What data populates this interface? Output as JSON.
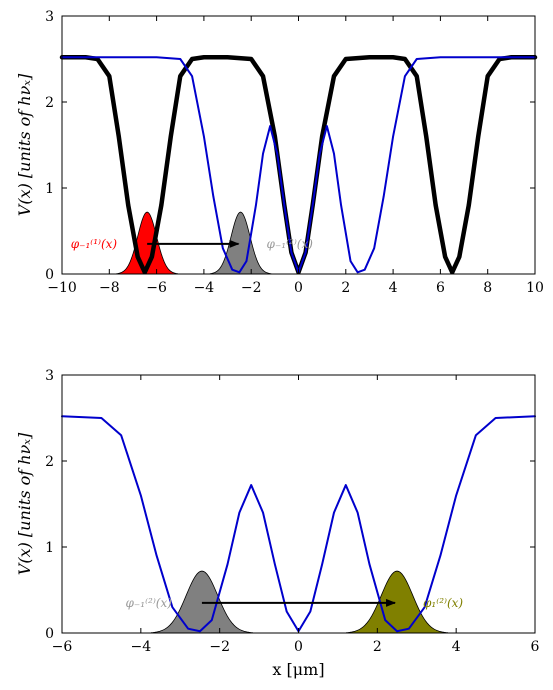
{
  "chart_data": [
    {
      "type": "line",
      "ylabel": "V(x) [units of hνₓ]",
      "xlabel": "",
      "xlim": [
        -10,
        10
      ],
      "ylim": [
        0,
        3
      ],
      "x_ticks": [
        "−10",
        "−8",
        "−6",
        "−4",
        "−2",
        "0",
        "2",
        "4",
        "6",
        "8",
        "10"
      ],
      "y_ticks": [
        "0",
        "1",
        "2",
        "3"
      ],
      "grid": false,
      "series": [
        {
          "role": "potential, three wells (thick)",
          "color": "#000000",
          "x": [
            -10,
            -9,
            -8.5,
            -8,
            -7.6,
            -7.2,
            -6.8,
            -6.5,
            -6.2,
            -5.8,
            -5.4,
            -5,
            -4.5,
            -4,
            -3,
            -2,
            -1.5,
            -1,
            -0.6,
            -0.3,
            0,
            0.3,
            0.6,
            1,
            1.5,
            2,
            3,
            4,
            4.5,
            5,
            5.4,
            5.8,
            6.2,
            6.5,
            6.8,
            7.2,
            7.6,
            8,
            8.5,
            9,
            10
          ],
          "y": [
            2.52,
            2.52,
            2.5,
            2.3,
            1.6,
            0.8,
            0.2,
            0.02,
            0.2,
            0.8,
            1.6,
            2.3,
            2.5,
            2.52,
            2.52,
            2.5,
            2.3,
            1.6,
            0.8,
            0.25,
            0.02,
            0.25,
            0.8,
            1.6,
            2.3,
            2.5,
            2.52,
            2.52,
            2.5,
            2.3,
            1.6,
            0.8,
            0.2,
            0.02,
            0.2,
            0.8,
            1.6,
            2.3,
            2.5,
            2.52,
            2.52
          ]
        },
        {
          "role": "potential, double well (thin)",
          "color": "#0000cc",
          "x": [
            -10,
            -6,
            -5,
            -4.5,
            -4,
            -3.6,
            -3.2,
            -2.8,
            -2.5,
            -2.2,
            -1.8,
            -1.5,
            -1.2,
            -0.9,
            -0.6,
            -0.3,
            0,
            0.3,
            0.6,
            0.9,
            1.2,
            1.5,
            1.8,
            2.2,
            2.5,
            2.8,
            3.2,
            3.6,
            4,
            4.5,
            5,
            6,
            10
          ],
          "y": [
            2.52,
            2.52,
            2.5,
            2.3,
            1.6,
            0.9,
            0.3,
            0.05,
            0.02,
            0.15,
            0.8,
            1.4,
            1.72,
            1.4,
            0.8,
            0.25,
            0.02,
            0.25,
            0.8,
            1.4,
            1.72,
            1.4,
            0.8,
            0.15,
            0.02,
            0.05,
            0.3,
            0.9,
            1.6,
            2.3,
            2.5,
            2.52,
            2.52
          ]
        }
      ],
      "wavepackets": [
        {
          "center": -6.4,
          "width": 0.4,
          "height": 0.72,
          "color": "#ff0000",
          "label": "φ₋₁⁽¹⁾(x)",
          "label_color": "#ff0000"
        },
        {
          "center": -2.45,
          "width": 0.4,
          "height": 0.72,
          "color": "#808080",
          "label": "φ₋₁⁽²⁾(x)",
          "label_color": "#999999"
        }
      ],
      "arrow": {
        "from": [
          -6.4,
          0.35
        ],
        "to": [
          -2.45,
          0.35
        ]
      }
    },
    {
      "type": "line",
      "ylabel": "V(x) [units of hνₓ]",
      "xlabel": "x [μm]",
      "xlim": [
        -6,
        6
      ],
      "ylim": [
        0,
        3
      ],
      "x_ticks": [
        "−6",
        "−4",
        "−2",
        "0",
        "2",
        "4",
        "6"
      ],
      "y_ticks": [
        "0",
        "1",
        "2",
        "3"
      ],
      "grid": false,
      "series": [
        {
          "role": "potential, double well",
          "color": "#0000cc",
          "x": [
            -6,
            -5,
            -4.5,
            -4,
            -3.6,
            -3.2,
            -2.8,
            -2.5,
            -2.2,
            -1.8,
            -1.5,
            -1.2,
            -0.9,
            -0.6,
            -0.3,
            0,
            0.3,
            0.6,
            0.9,
            1.2,
            1.5,
            1.8,
            2.2,
            2.5,
            2.8,
            3.2,
            3.6,
            4,
            4.5,
            5,
            6
          ],
          "y": [
            2.52,
            2.5,
            2.3,
            1.6,
            0.9,
            0.3,
            0.05,
            0.02,
            0.15,
            0.8,
            1.4,
            1.72,
            1.4,
            0.8,
            0.25,
            0.02,
            0.25,
            0.8,
            1.4,
            1.72,
            1.4,
            0.8,
            0.15,
            0.02,
            0.05,
            0.3,
            0.9,
            1.6,
            2.3,
            2.5,
            2.52
          ]
        }
      ],
      "wavepackets": [
        {
          "center": -2.45,
          "width": 0.4,
          "height": 0.72,
          "color": "#808080",
          "label": "φ₋₁⁽²⁾(x)",
          "label_color": "#999999"
        },
        {
          "center": 2.5,
          "width": 0.4,
          "height": 0.72,
          "color": "#808000",
          "label": "φ₁⁽²⁾(x)",
          "label_color": "#808000"
        }
      ],
      "arrow": {
        "from": [
          -2.45,
          0.35
        ],
        "to": [
          2.5,
          0.35
        ]
      }
    }
  ]
}
